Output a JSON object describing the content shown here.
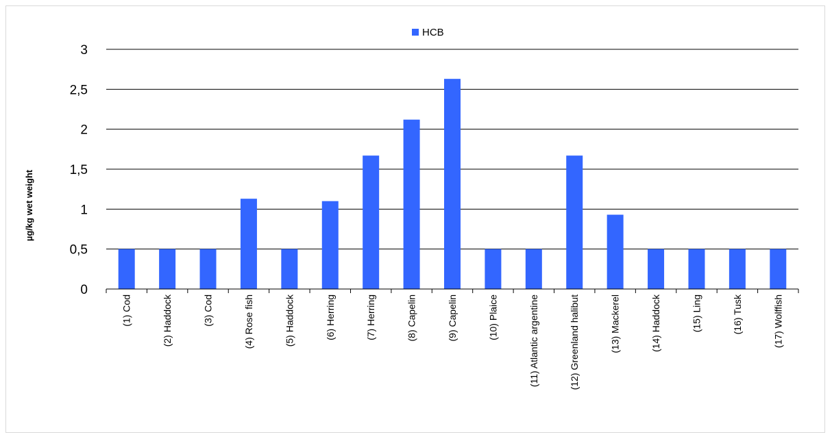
{
  "chart_data": {
    "type": "bar",
    "title": "",
    "xlabel": "",
    "ylabel": "µg/kg wet weight",
    "ylim": [
      0,
      3
    ],
    "yticks": [
      0,
      0.5,
      1,
      1.5,
      2,
      2.5,
      3
    ],
    "ytick_labels": [
      "0",
      "0,5",
      "1",
      "1,5",
      "2",
      "2,5",
      "3"
    ],
    "grid": true,
    "legend": "top-center",
    "color": "#3366ff",
    "categories": [
      "(1) Cod",
      "(2) Haddock",
      "(3) Cod",
      "(4) Rose fish",
      "(5) Haddock",
      "(6) Herring",
      "(7) Herring",
      "(8) Capelin",
      "(9) Capelin",
      "(10) Plaice",
      "(11) Atlantic argentine",
      "(12) Greenland halibut",
      "(13) Mackerel",
      "(14) Haddock",
      "(15) Ling",
      "(16) Tusk",
      "(17) Wolffish"
    ],
    "series": [
      {
        "name": "HCB",
        "values": [
          0.5,
          0.5,
          0.5,
          1.13,
          0.5,
          1.1,
          1.67,
          2.12,
          2.63,
          0.5,
          0.5,
          1.67,
          0.93,
          0.5,
          0.5,
          0.5,
          0.5
        ]
      }
    ]
  }
}
